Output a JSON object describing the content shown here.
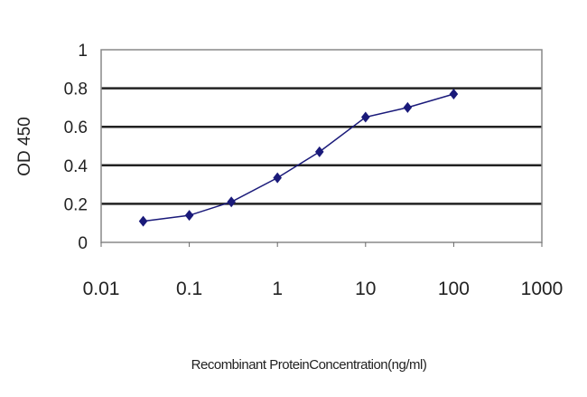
{
  "chart_data": {
    "type": "line",
    "title": "",
    "xlabel": "Recombinant ProteinConcentration(ng/ml)",
    "ylabel": "OD 450",
    "xscale": "log",
    "xlim": [
      0.01,
      1000
    ],
    "ylim": [
      0,
      1
    ],
    "xticks": [
      "0.01",
      "0.1",
      "1",
      "10",
      "100",
      "1000"
    ],
    "yticks": [
      "0",
      "0.2",
      "0.4",
      "0.6",
      "0.8",
      "1"
    ],
    "grid": "horizontal",
    "series": [
      {
        "x": [
          0.03,
          0.1,
          0.3,
          1,
          3,
          10,
          30,
          100
        ],
        "y": [
          0.11,
          0.14,
          0.21,
          0.335,
          0.47,
          0.65,
          0.7,
          0.77
        ],
        "color": "#1a1a7a",
        "marker": "diamond"
      }
    ]
  }
}
